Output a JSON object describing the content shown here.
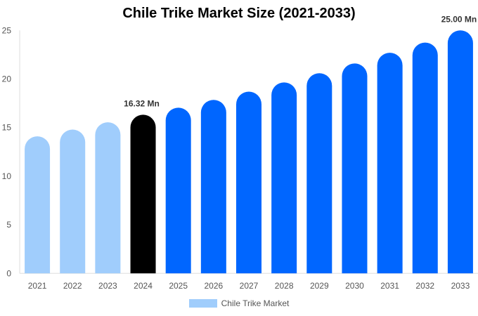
{
  "chart_data": {
    "type": "bar",
    "title": "Chile Trike Market Size (2021-2033)",
    "xlabel": "",
    "ylabel": "",
    "ylim": [
      0,
      25
    ],
    "yticks": [
      0,
      5,
      10,
      15,
      20,
      25
    ],
    "grid": false,
    "legend_position": "bottom",
    "categories": [
      "2021",
      "2022",
      "2023",
      "2024",
      "2025",
      "2026",
      "2027",
      "2028",
      "2029",
      "2030",
      "2031",
      "2032",
      "2033"
    ],
    "series": [
      {
        "name": "Chile Trike Market",
        "values": [
          14.1,
          14.8,
          15.55,
          16.32,
          17.05,
          17.85,
          18.7,
          19.65,
          20.6,
          21.6,
          22.7,
          23.75,
          25.0
        ]
      }
    ],
    "bar_colors": [
      "#a0cdfc",
      "#a0cdfc",
      "#a0cdfc",
      "#000000",
      "#0066ff",
      "#0066ff",
      "#0066ff",
      "#0066ff",
      "#0066ff",
      "#0066ff",
      "#0066ff",
      "#0066ff",
      "#0066ff"
    ],
    "annotations": [
      {
        "category": "2024",
        "text": "16.32 Mn"
      },
      {
        "category": "2033",
        "text": "25.00 Mn"
      }
    ]
  }
}
